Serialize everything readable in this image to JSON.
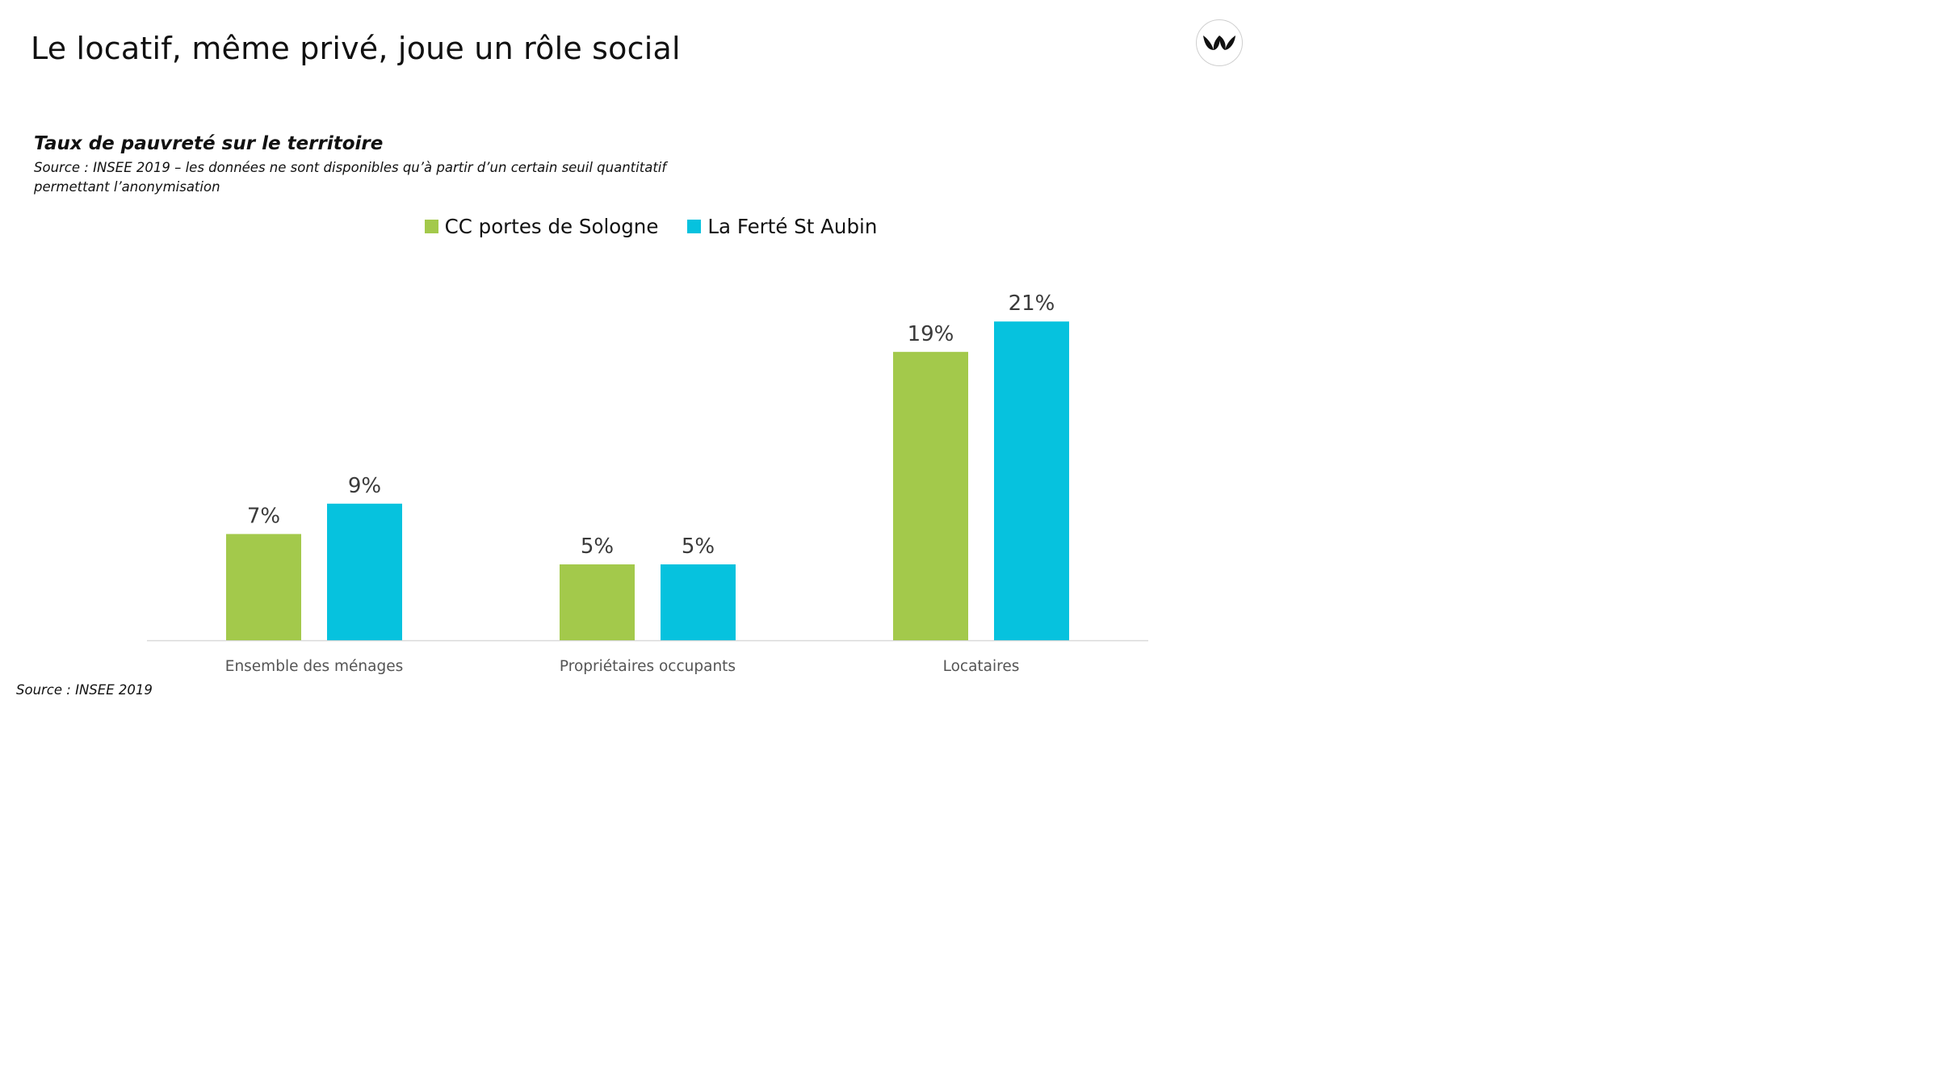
{
  "slide": {
    "title": "Le locatif, même privé, joue un rôle social",
    "footer_source": "Source : INSEE 2019"
  },
  "logo": {
    "icon": "leaf-logo-icon",
    "color": "#111111"
  },
  "colors": {
    "series_green": "#a3c94b",
    "series_cyan": "#06c2de",
    "axis": "#d9d9d9"
  },
  "chart_data": {
    "type": "bar",
    "title": "Taux de pauvreté sur le territoire",
    "subtitle": "Source : INSEE 2019 – les données ne sont disponibles qu’à partir d’un certain seuil quantitatif permettant l’anonymisation",
    "categories": [
      "Ensemble des ménages",
      "Propriétaires occupants",
      "Locataires"
    ],
    "series": [
      {
        "name": "CC portes de Sologne",
        "values": [
          7,
          5,
          19
        ],
        "labels": [
          "7%",
          "5%",
          "19%"
        ],
        "color": "#a3c94b"
      },
      {
        "name": "La Ferté St Aubin",
        "values": [
          9,
          5,
          21
        ],
        "labels": [
          "9%",
          "5%",
          "21%"
        ],
        "color": "#06c2de"
      }
    ],
    "ylim": [
      0,
      24
    ],
    "grid": false,
    "legend_position": "top-center"
  }
}
